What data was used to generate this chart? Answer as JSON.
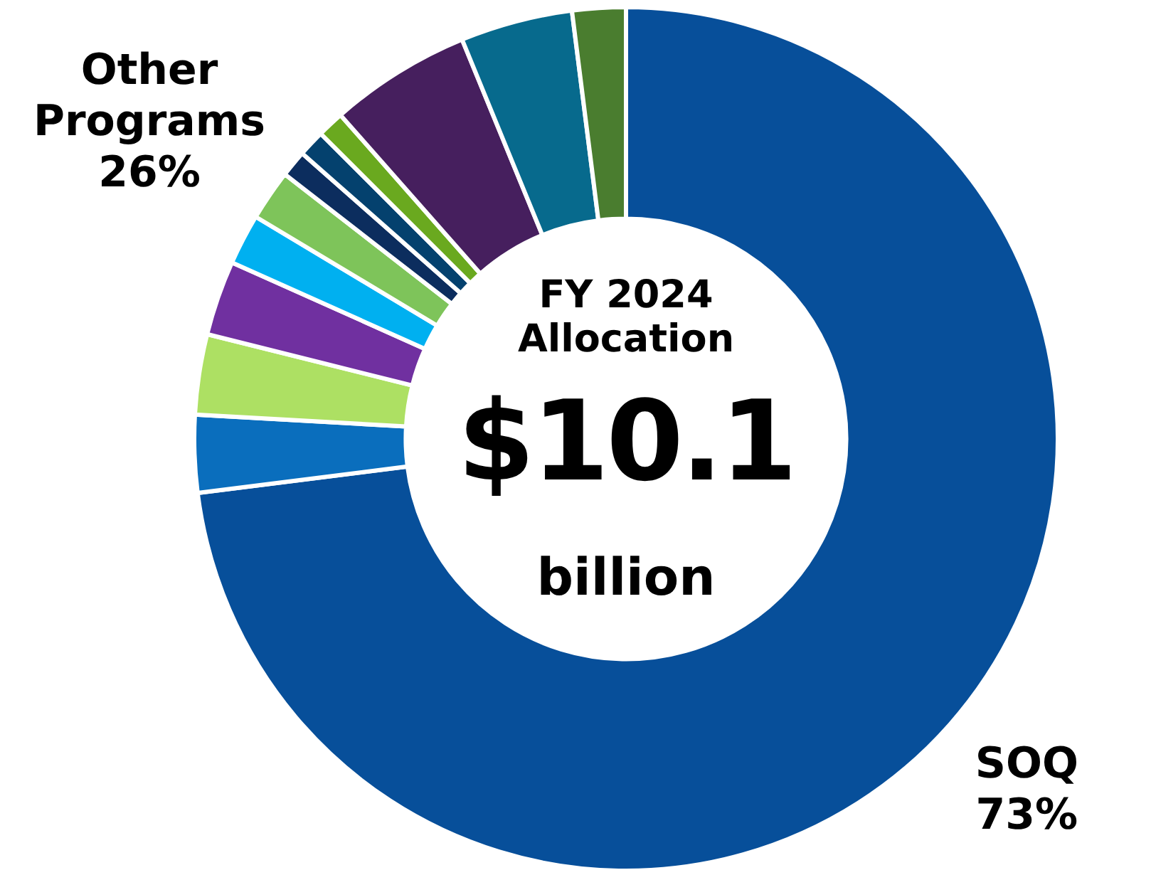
{
  "chart_data": {
    "type": "donut",
    "title": "FY 2024 Allocation",
    "categories": [
      "SOQ",
      null,
      null,
      null,
      null,
      null,
      null,
      null,
      null,
      null,
      null,
      null
    ],
    "values": [
      73,
      2.9,
      3.0,
      2.8,
      1.9,
      1.9,
      1.0,
      1.0,
      1.0,
      5.3,
      4.2,
      2.0
    ],
    "value_labels": [
      "73%",
      null,
      null,
      null,
      null,
      null,
      null,
      null,
      null,
      null,
      null,
      null
    ],
    "colors": [
      "#074f9a",
      "#0a6ebd",
      "#ade063",
      "#7030a0",
      "#00b0f0",
      "#7ec45a",
      "#0c2d5e",
      "#04416e",
      "#6aa91f",
      "#461f5e",
      "#076a8d",
      "#4a7d2f"
    ],
    "annotations": [
      "$10.1",
      "billion",
      "Other Programs 26%"
    ],
    "legend": false
  }
}
